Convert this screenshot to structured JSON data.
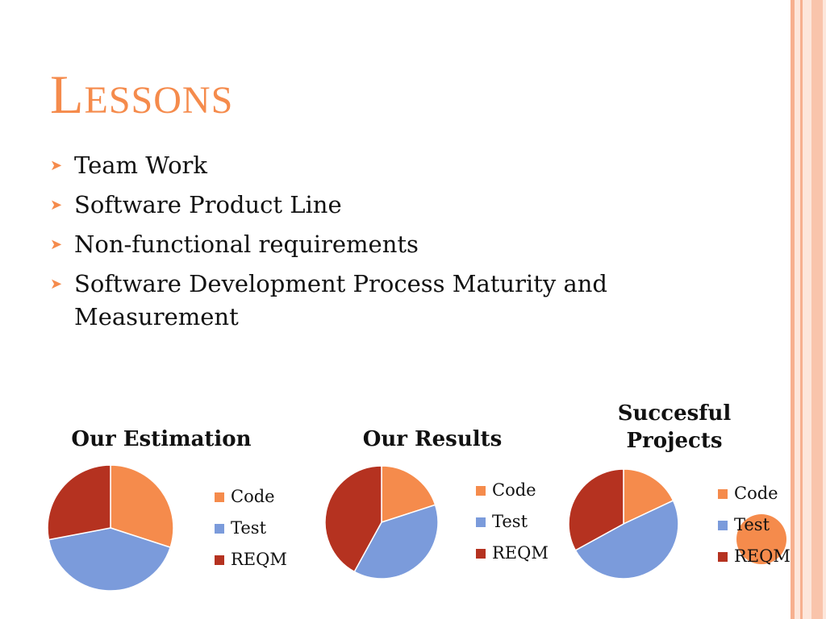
{
  "slide": {
    "title": "Lessons",
    "bullets": [
      "Team Work",
      "Software Product Line",
      "Non-functional requirements",
      "Software Development Process Maturity and Measurement"
    ]
  },
  "colors": {
    "accent": "#f58b4c",
    "border_light": "#fbd6c4",
    "border_mid": "#f7b08f"
  },
  "bullet_icon": "arrowhead-bullet-icon",
  "chart_data": [
    {
      "type": "pie",
      "title": "Our Estimation",
      "categories": [
        "Code",
        "Test",
        "REQM"
      ],
      "values": [
        30,
        42,
        28
      ],
      "colors": [
        "#f58b4c",
        "#7b9bdb",
        "#b53220"
      ],
      "legend": "right"
    },
    {
      "type": "pie",
      "title": "Our Results",
      "categories": [
        "Code",
        "Test",
        "REQM"
      ],
      "values": [
        20,
        38,
        42
      ],
      "colors": [
        "#f58b4c",
        "#7b9bdb",
        "#b53220"
      ],
      "legend": "right"
    },
    {
      "type": "pie",
      "title": "Succesful Projects",
      "categories": [
        "Code",
        "Test",
        "REQM"
      ],
      "values": [
        18,
        49,
        33
      ],
      "colors": [
        "#f58b4c",
        "#7b9bdb",
        "#b53220"
      ],
      "legend": "right"
    }
  ]
}
